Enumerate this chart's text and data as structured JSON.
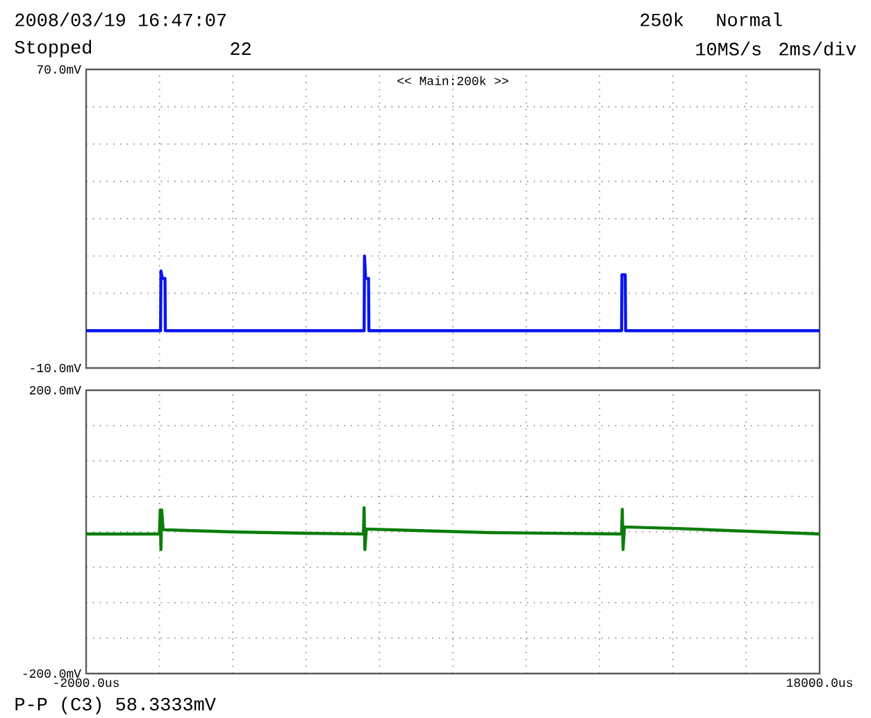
{
  "chart_data": [
    {
      "type": "line",
      "x": [
        -2000,
        0,
        30,
        40,
        80,
        150,
        160,
        5580,
        5590,
        5620,
        5700,
        5710,
        12600,
        12610,
        12700,
        12710,
        18000
      ],
      "series": [
        {
          "color": "#0a14f0",
          "values": [
            0,
            0,
            0,
            16,
            14,
            14,
            0,
            0,
            20,
            14,
            14,
            0,
            0,
            15,
            15,
            0,
            0
          ]
        }
      ],
      "xlim": [
        -2000,
        18000
      ],
      "ylim": [
        -10,
        70
      ],
      "xticks": [
        {
          "value": -2000,
          "label": null
        },
        {
          "value": 0,
          "label": null
        },
        {
          "value": 2000,
          "label": null
        },
        {
          "value": 4000,
          "label": null
        },
        {
          "value": 6000,
          "label": null
        },
        {
          "value": 8000,
          "label": null
        },
        {
          "value": 10000,
          "label": null
        },
        {
          "value": 12000,
          "label": null
        },
        {
          "value": 14000,
          "label": null
        },
        {
          "value": 16000,
          "label": null
        },
        {
          "value": 18000,
          "label": null
        }
      ],
      "yticks": [
        {
          "value": -10,
          "label": "-10.0mV"
        },
        {
          "value": 0,
          "label": null
        },
        {
          "value": 10,
          "label": null
        },
        {
          "value": 20,
          "label": null
        },
        {
          "value": 30,
          "label": null
        },
        {
          "value": 40,
          "label": null
        },
        {
          "value": 50,
          "label": null
        },
        {
          "value": 60,
          "label": null
        },
        {
          "value": 70,
          "label": "70.0mV"
        }
      ],
      "tick_labels": "y",
      "grid": true,
      "line_style": "solid",
      "marker": "none",
      "annotations": [
        "2008/03/19 16:47:07",
        "Stopped",
        "22",
        "250k",
        "Normal",
        "10MS/s",
        "2ms/div",
        "<< Main:200k >>"
      ]
    },
    {
      "type": "line",
      "x": [
        -2000,
        0,
        20,
        40,
        60,
        100,
        2000,
        4000,
        5560,
        5580,
        5600,
        5640,
        7000,
        9000,
        12600,
        12620,
        12640,
        12680,
        14000,
        16000,
        18000
      ],
      "series": [
        {
          "color": "#0a7d0a",
          "values": [
            -3,
            -3,
            31,
            -25,
            31,
            3,
            0,
            -2,
            -3,
            34,
            -25,
            4,
            2,
            -1,
            -3,
            32,
            -25,
            7,
            5,
            1,
            -3
          ]
        }
      ],
      "xlim": [
        -2000,
        18000
      ],
      "ylim": [
        -200,
        200
      ],
      "xticks": [
        {
          "value": -2000,
          "label": "-2000.0us"
        },
        {
          "value": 0,
          "label": null
        },
        {
          "value": 2000,
          "label": null
        },
        {
          "value": 4000,
          "label": null
        },
        {
          "value": 6000,
          "label": null
        },
        {
          "value": 8000,
          "label": null
        },
        {
          "value": 10000,
          "label": null
        },
        {
          "value": 12000,
          "label": null
        },
        {
          "value": 14000,
          "label": null
        },
        {
          "value": 16000,
          "label": null
        },
        {
          "value": 18000,
          "label": "18000.0us"
        }
      ],
      "yticks": [
        {
          "value": -200,
          "label": "-200.0mV"
        },
        {
          "value": -150,
          "label": null
        },
        {
          "value": -100,
          "label": null
        },
        {
          "value": -50,
          "label": null
        },
        {
          "value": 0,
          "label": null
        },
        {
          "value": 50,
          "label": null
        },
        {
          "value": 100,
          "label": null
        },
        {
          "value": 150,
          "label": null
        },
        {
          "value": 200,
          "label": "200.0mV"
        }
      ],
      "grid": true,
      "line_style": "solid",
      "marker": "none",
      "annotations": [
        "P-P (C3)  58.3333mV"
      ]
    }
  ]
}
